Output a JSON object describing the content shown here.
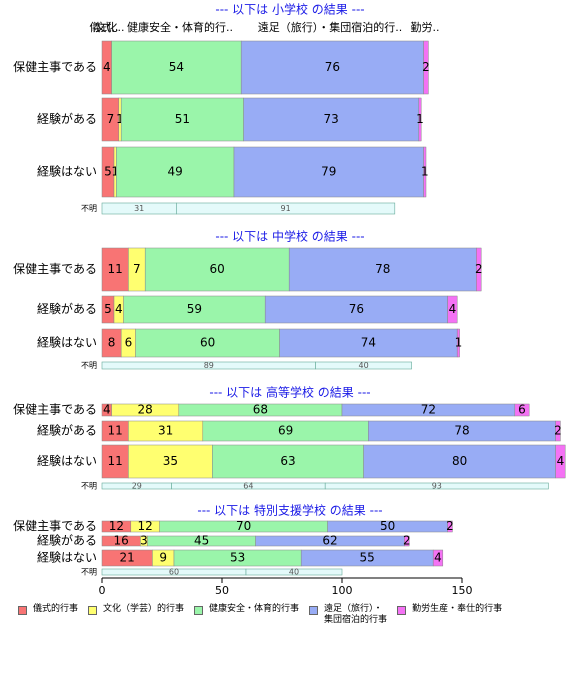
{
  "chart_data": {
    "type": "bar",
    "orientation": "horizontal",
    "stacked": true,
    "xlim": [
      0,
      150
    ],
    "xticks": [
      0,
      50,
      100,
      150
    ],
    "column_headers": [
      "儀式..",
      "文化..",
      "健康安全・体育的行..",
      "遠足（旅行）・集団宿泊的行..",
      "勤労.."
    ],
    "series": [
      {
        "name": "儀式的行事",
        "color": "#f87474"
      },
      {
        "name": "文化（学芸）的行事",
        "color": "#ffff70"
      },
      {
        "name": "健康安全・体育的行事",
        "color": "#9af5aa"
      },
      {
        "name": "遠足（旅行）・\n集団宿泊的行事",
        "color": "#98acf5"
      },
      {
        "name": "勤労生産・奉仕的行事",
        "color": "#f472f4"
      }
    ],
    "unknown_color": "#e4fafa",
    "panels": [
      {
        "title": "--- 以下は 小学校 の結果 ---",
        "categories": [
          "保健主事である",
          "経験がある",
          "経験はない"
        ],
        "values": [
          [
            4,
            0,
            54,
            76,
            2
          ],
          [
            7,
            1,
            51,
            73,
            1
          ],
          [
            5,
            1,
            49,
            79,
            1
          ]
        ],
        "unknown": {
          "label": "不明",
          "values": [
            31,
            91
          ]
        }
      },
      {
        "title": "--- 以下は 中学校 の結果 ---",
        "categories": [
          "保健主事である",
          "経験がある",
          "経験はない"
        ],
        "values": [
          [
            11,
            7,
            60,
            78,
            2
          ],
          [
            5,
            4,
            59,
            76,
            4
          ],
          [
            8,
            6,
            60,
            74,
            1
          ]
        ],
        "unknown": {
          "label": "不明",
          "values": [
            89,
            40
          ]
        }
      },
      {
        "title": "--- 以下は 高等学校 の結果 ---",
        "categories": [
          "保健主事である",
          "経験がある",
          "経験はない"
        ],
        "values": [
          [
            4,
            28,
            68,
            72,
            6
          ],
          [
            11,
            31,
            69,
            78,
            2
          ],
          [
            11,
            35,
            63,
            80,
            4
          ]
        ],
        "unknown": {
          "label": "不明",
          "values": [
            29,
            64,
            93
          ]
        }
      },
      {
        "title": "--- 以下は 特別支援学校 の結果 ---",
        "categories": [
          "保健主事である",
          "経験がある",
          "経験はない"
        ],
        "values": [
          [
            12,
            12,
            70,
            50,
            2
          ],
          [
            16,
            3,
            45,
            62,
            2
          ],
          [
            21,
            9,
            53,
            55,
            4
          ]
        ],
        "unknown": {
          "label": "不明",
          "values": [
            60,
            40
          ]
        }
      }
    ]
  }
}
